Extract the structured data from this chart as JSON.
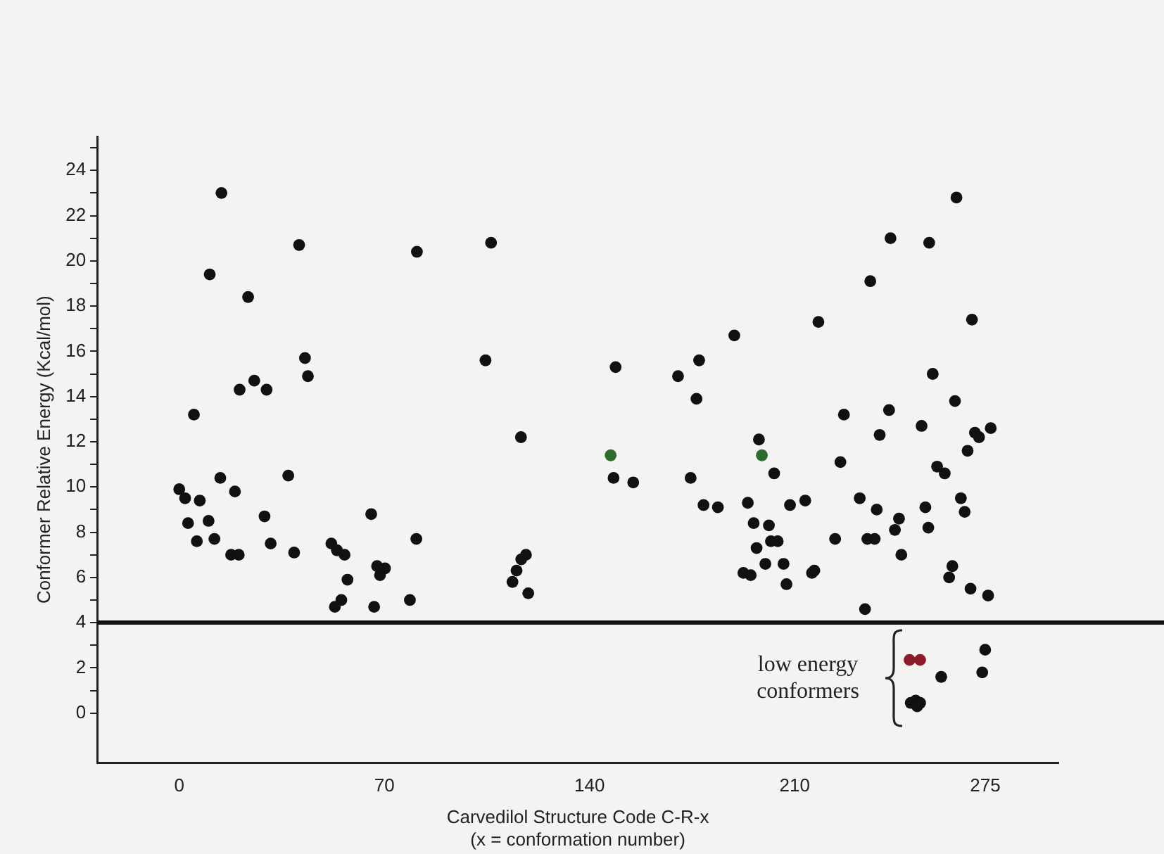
{
  "chart_data": {
    "type": "scatter",
    "xlabel": "Carvedilol Structure Code C-R-x\n(x = conformation number)",
    "ylabel": "Conformer Relative Energy (Kcal/mol)",
    "xlim": [
      -28,
      300
    ],
    "xticks": [
      0,
      70,
      140,
      210,
      275
    ],
    "ylim": [
      -2.2,
      25.5
    ],
    "yticks": [
      0,
      {
        "value": 1,
        "label": null
      },
      2,
      {
        "value": 3,
        "label": null
      },
      4,
      {
        "value": 5,
        "label": null
      },
      6,
      {
        "value": 7,
        "label": null
      },
      8,
      {
        "value": 9,
        "label": null
      },
      10,
      {
        "value": 11,
        "label": null
      },
      12,
      {
        "value": 13,
        "label": null
      },
      14,
      {
        "value": 15,
        "label": null
      },
      16,
      {
        "value": 17,
        "label": null
      },
      18,
      {
        "value": 19,
        "label": null
      },
      20,
      {
        "value": 21,
        "label": null
      },
      22,
      {
        "value": 23,
        "label": null
      },
      24,
      {
        "value": 25,
        "label": null
      }
    ],
    "grid": false,
    "legend": false,
    "marker": "circle",
    "ref_lines": [
      {
        "axis": "y",
        "value": 4,
        "color": "#111111"
      }
    ],
    "annotations": [
      "low energy conformers"
    ],
    "series": [
      {
        "color": "#111111",
        "x": [
          0,
          2,
          7,
          3,
          10,
          6,
          12,
          5,
          10.4,
          14.4,
          14,
          19,
          17.7,
          20.3,
          20.6,
          23.5,
          25.6,
          29.8,
          29.1,
          31.2,
          37.2,
          39.2,
          40.9,
          42.9,
          43.9,
          51.9,
          53.8,
          56.4,
          57.4,
          53.1,
          55.3,
          65.5,
          67.5,
          70.2,
          68.5,
          66.5,
          78.7,
          80.9,
          81.1,
          106.4,
          104.5,
          116.6,
          113.7,
          115.1,
          116.7,
          118.3,
          119.1,
          148.9,
          148.2,
          154.9,
          170.2,
          177.4,
          176.5,
          174.5,
          189.4,
          178.9,
          183.8,
          197.8,
          203,
          194,
          196,
          201.2,
          201.9,
          204.2,
          197,
          200,
          206.2,
          192.5,
          195,
          207.2,
          208.4,
          213.6,
          215.9,
          218.1,
          265.2,
          242.7,
          255.9,
          235.8,
          270.5,
          257.1,
          264.7,
          226.8,
          242.2,
          239,
          253.3,
          271.5,
          272.9,
          276.9,
          269,
          225.6,
          258.6,
          261.2,
          232.2,
          238,
          245.6,
          254.6,
          266.7,
          268,
          244.2,
          255.6,
          223.8,
          234.8,
          237.3,
          246.4,
          216.7,
          263.8,
          262.7,
          270,
          276,
          234,
          275,
          274,
          260,
          249.6,
          251.3,
          251.8,
          252.8
        ],
        "values": [
          9.9,
          9.5,
          9.4,
          8.4,
          8.5,
          7.6,
          7.7,
          13.2,
          19.4,
          23,
          10.4,
          9.8,
          7,
          7,
          14.3,
          18.4,
          14.7,
          14.3,
          8.7,
          7.5,
          10.5,
          7.1,
          20.7,
          15.7,
          14.9,
          7.5,
          7.2,
          7,
          5.9,
          4.7,
          5,
          8.8,
          6.5,
          6.4,
          6.1,
          4.7,
          5,
          7.7,
          20.4,
          20.8,
          15.6,
          12.2,
          5.8,
          6.3,
          6.8,
          7,
          5.3,
          15.3,
          10.4,
          10.2,
          14.9,
          15.6,
          13.9,
          10.4,
          16.7,
          9.2,
          9.1,
          12.1,
          10.6,
          9.3,
          8.4,
          8.3,
          7.6,
          7.6,
          7.3,
          6.6,
          6.6,
          6.2,
          6.1,
          5.7,
          9.2,
          9.4,
          6.2,
          17.3,
          22.8,
          21,
          20.8,
          19.1,
          17.4,
          15,
          13.8,
          13.2,
          13.4,
          12.3,
          12.7,
          12.4,
          12.2,
          12.6,
          11.6,
          11.1,
          10.9,
          10.6,
          9.5,
          9,
          8.6,
          9.1,
          9.5,
          8.9,
          8.1,
          8.2,
          7.7,
          7.7,
          7.7,
          7,
          6.3,
          6.5,
          6,
          5.5,
          5.2,
          4.6,
          2.8,
          1.8,
          1.6,
          0.45,
          0.55,
          0.3,
          0.45
        ]
      },
      {
        "color": "#2e6b2e",
        "x": [
          147.2,
          198.8
        ],
        "values": [
          11.4,
          11.4
        ]
      },
      {
        "color": "#8b1a2a",
        "x": [
          249.2,
          252.8
        ],
        "values": [
          2.35,
          2.35
        ]
      }
    ]
  }
}
